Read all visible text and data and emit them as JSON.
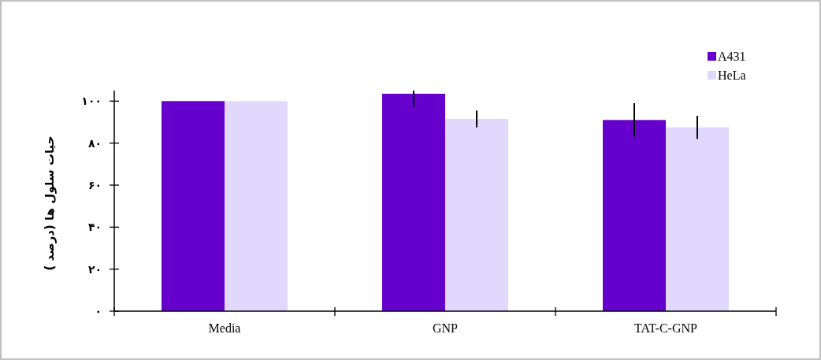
{
  "chart_data": {
    "type": "bar",
    "ylabel": "حیات سلول ها (درصد )",
    "categories": [
      "Media",
      "GNP",
      "TAT-C-GNP"
    ],
    "series": [
      {
        "name": "A431",
        "color": "#6600cc",
        "values": [
          100,
          103.5,
          91
        ],
        "errors": [
          null,
          [
            97,
            105
          ],
          [
            83,
            99
          ]
        ]
      },
      {
        "name": "HeLa",
        "color": "#e1d9fd",
        "values": [
          100,
          91.5,
          87.5
        ],
        "errors": [
          null,
          [
            87.5,
            95.5
          ],
          [
            82,
            93
          ]
        ]
      }
    ],
    "ylim": [
      0,
      105
    ],
    "yticks": [
      {
        "value": 0,
        "label": "۰"
      },
      {
        "value": 20,
        "label": "۲۰"
      },
      {
        "value": 40,
        "label": "۴۰"
      },
      {
        "value": 60,
        "label": "۶۰"
      },
      {
        "value": 80,
        "label": "۸۰"
      },
      {
        "value": 100,
        "label": "۱۰۰"
      }
    ],
    "grid": false,
    "legend": "top right"
  }
}
